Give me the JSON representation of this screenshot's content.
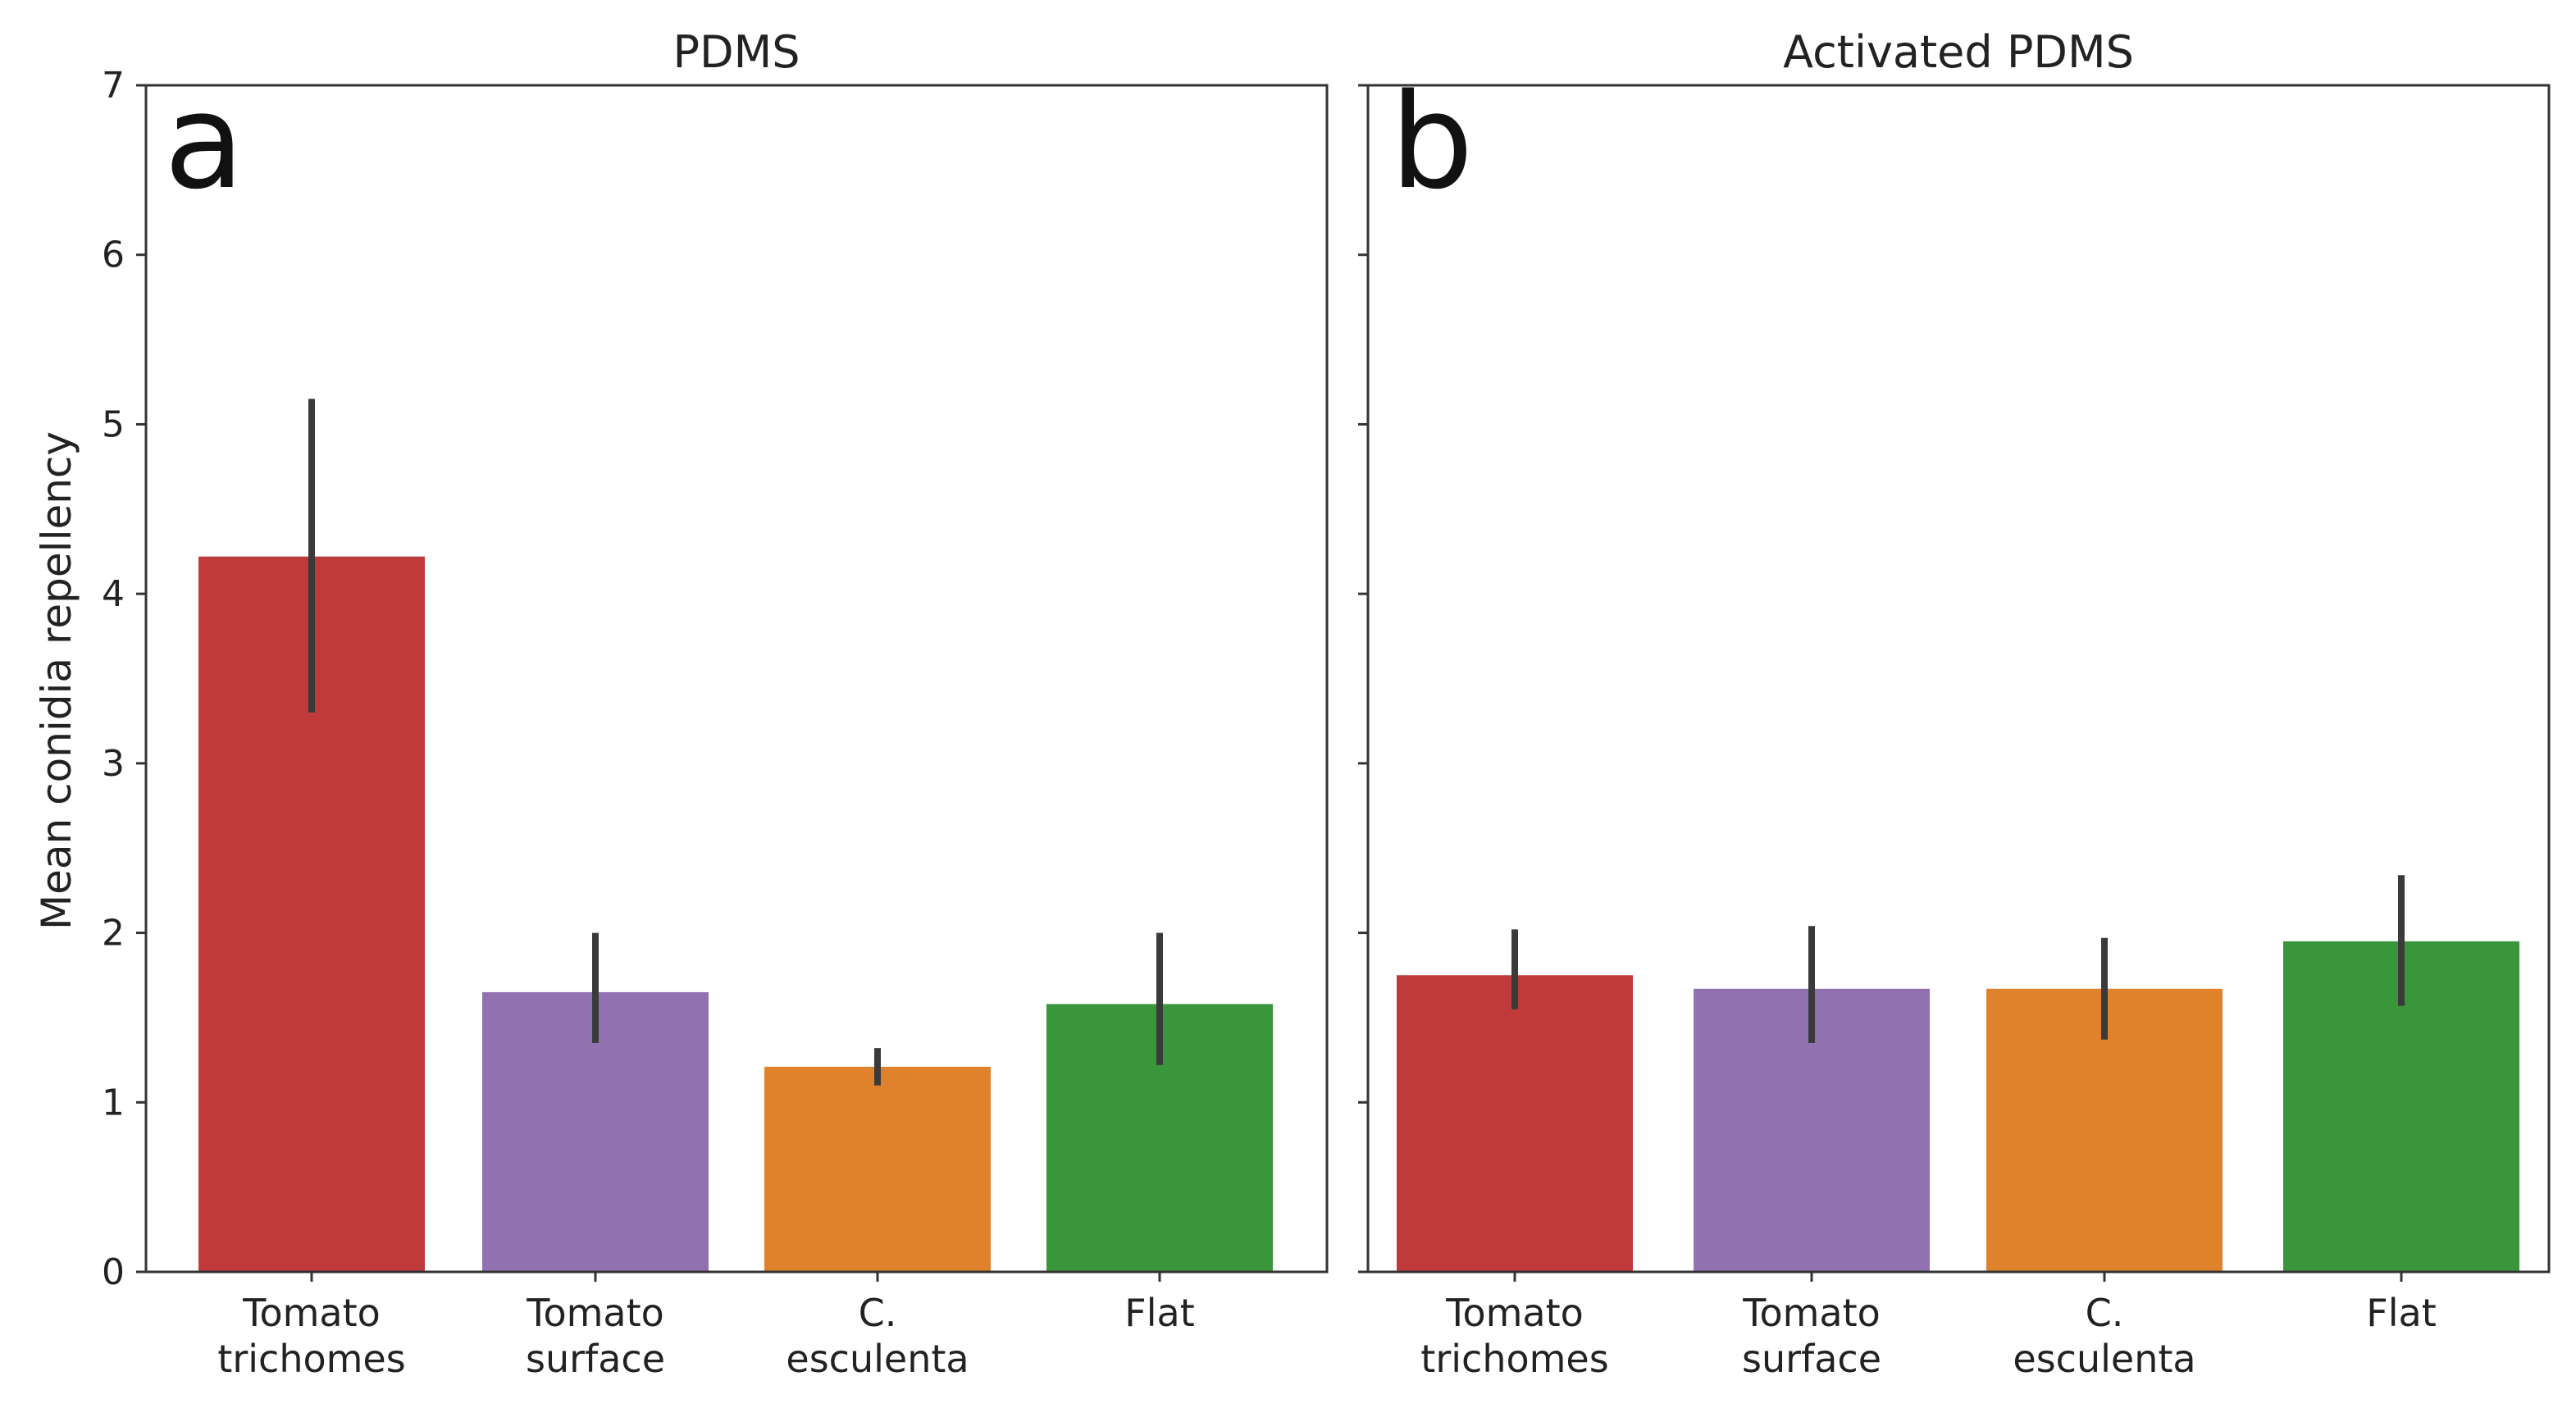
{
  "chart_data": [
    {
      "type": "bar",
      "panel_letter": "a",
      "title": "PDMS",
      "ylabel": "Mean conidia repellency",
      "xlabel": "",
      "ylim": [
        0,
        7
      ],
      "yticks": [
        "0",
        "1",
        "2",
        "3",
        "4",
        "5",
        "6",
        "7"
      ],
      "categories": [
        {
          "line1": "Tomato",
          "line2": "trichomes"
        },
        {
          "line1": "Tomato",
          "line2": "surface"
        },
        {
          "line1": "C.",
          "line2": "esculenta"
        },
        {
          "line1": "Flat",
          "line2": ""
        }
      ],
      "values": [
        4.22,
        1.65,
        1.21,
        1.58
      ],
      "errors": [
        [
          3.3,
          5.15
        ],
        [
          1.35,
          2.0
        ],
        [
          1.1,
          1.32
        ],
        [
          1.22,
          2.0
        ]
      ],
      "colors": [
        "#c0393b",
        "#9271b0",
        "#e0822b",
        "#3a963a"
      ]
    },
    {
      "type": "bar",
      "panel_letter": "b",
      "title": "Activated PDMS",
      "ylabel": "",
      "xlabel": "",
      "ylim": [
        0,
        7
      ],
      "yticks": [],
      "categories": [
        {
          "line1": "Tomato",
          "line2": "trichomes"
        },
        {
          "line1": "Tomato",
          "line2": "surface"
        },
        {
          "line1": "C.",
          "line2": "esculenta"
        },
        {
          "line1": "Flat",
          "line2": ""
        }
      ],
      "values": [
        1.75,
        1.67,
        1.67,
        1.95
      ],
      "errors": [
        [
          1.55,
          2.02
        ],
        [
          1.35,
          2.04
        ],
        [
          1.37,
          1.97
        ],
        [
          1.57,
          2.34
        ]
      ],
      "colors": [
        "#c0393b",
        "#9271b0",
        "#e0822b",
        "#3a963a"
      ]
    }
  ]
}
